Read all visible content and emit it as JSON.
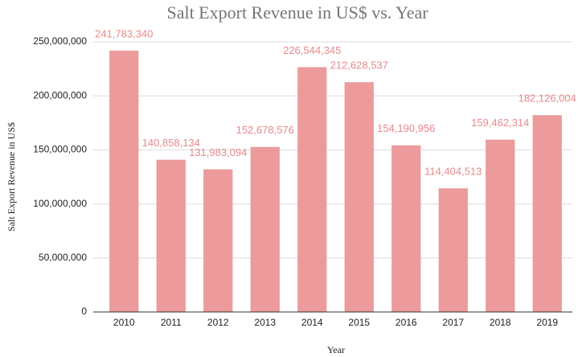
{
  "chart_data": {
    "type": "bar",
    "title": "Salt Export Revenue in US$ vs. Year",
    "x_label": "Year",
    "y_label": "Salt Export Revenue in US$",
    "categories": [
      "2010",
      "2011",
      "2012",
      "2013",
      "2014",
      "2015",
      "2016",
      "2017",
      "2018",
      "2019"
    ],
    "values": [
      241783340,
      140858134,
      131983094,
      152678576,
      226544345,
      212628537,
      154190956,
      114404513,
      159462314,
      182126004
    ],
    "value_labels": [
      "241,783,340",
      "140,858,134",
      "131,983,094",
      "152,678,576",
      "226,544,345",
      "212,628,537",
      "154,190,956",
      "114,404,513",
      "159,462,314",
      "182,126,004"
    ],
    "color": "#ec9a9b",
    "ylim": [
      0,
      250000000
    ],
    "yticks": [
      0,
      {
        "value": 50000000,
        "label": "50,000,000"
      },
      {
        "value": 100000000,
        "label": "100,000,000"
      },
      {
        "value": 150000000,
        "label": "150,000,000"
      },
      {
        "value": 200000000,
        "label": "200,000,000"
      },
      {
        "value": 250000000,
        "label": "250,000,000"
      }
    ],
    "grid": true
  }
}
